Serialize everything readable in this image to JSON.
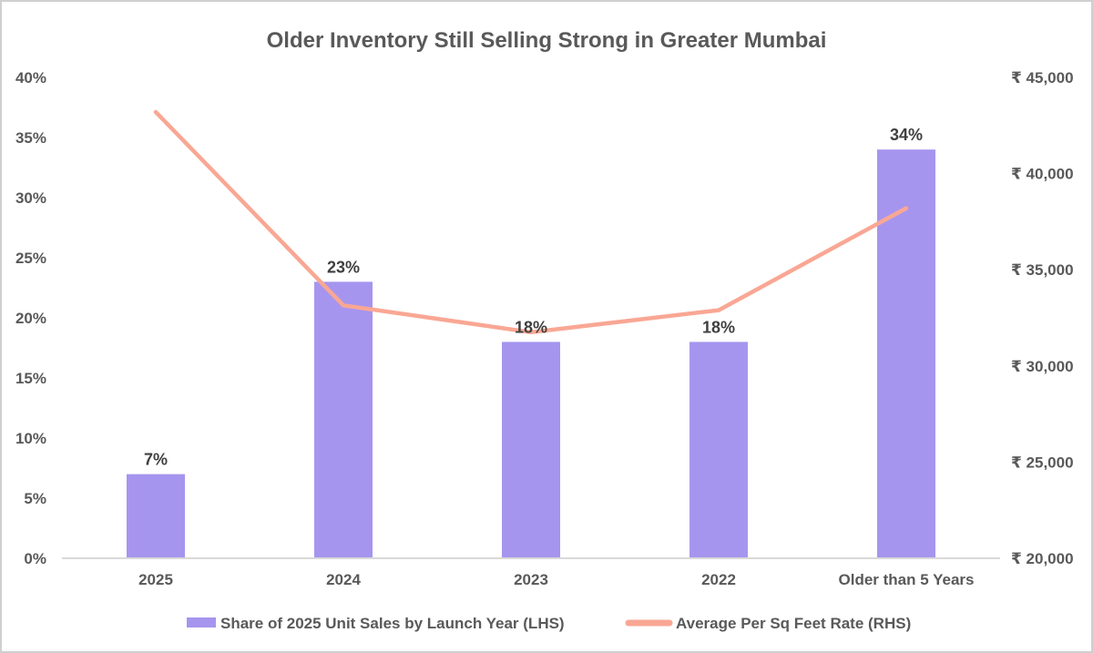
{
  "page": {
    "background_color": "#ffffff",
    "border_color": "#cfcfcf"
  },
  "styles": {
    "title_color": "#595959",
    "axis_text_color": "#595959",
    "data_label_color": "#3f3f3f",
    "axis_line_color": "#d9d9d9",
    "bar_color": "#a695ee",
    "line_color": "#f9a794"
  },
  "chart_data": {
    "type": "bar",
    "subtype": "combo-bar-line-dual-axis",
    "title": "Older Inventory Still Selling Strong in Greater Mumbai",
    "categories": [
      "2025",
      "2024",
      "2023",
      "2022",
      "Older than 5 Years"
    ],
    "series": [
      {
        "name": "Share of 2025 Unit Sales by Launch Year (LHS)",
        "type": "bar",
        "axis": "left",
        "color": "#a695ee",
        "values": [
          7,
          23,
          18,
          18,
          34
        ],
        "data_labels": [
          "7%",
          "23%",
          "18%",
          "18%",
          "34%"
        ]
      },
      {
        "name": "Average Per Sq Feet Rate (RHS)",
        "type": "line",
        "axis": "right",
        "color": "#f9a794",
        "values": [
          43200,
          33150,
          31750,
          32900,
          38200
        ]
      }
    ],
    "left_axis": {
      "min": 0,
      "max": 40,
      "tick_step": 5,
      "tick_labels": [
        "0%",
        "5%",
        "10%",
        "15%",
        "20%",
        "25%",
        "30%",
        "35%",
        "40%"
      ]
    },
    "right_axis": {
      "min": 20000,
      "max": 45000,
      "tick_step": 5000,
      "tick_labels": [
        "₹ 20,000",
        "₹ 25,000",
        "₹ 30,000",
        "₹ 35,000",
        "₹ 40,000",
        "₹ 45,000"
      ]
    },
    "legend_position": "bottom",
    "gridlines": false
  }
}
